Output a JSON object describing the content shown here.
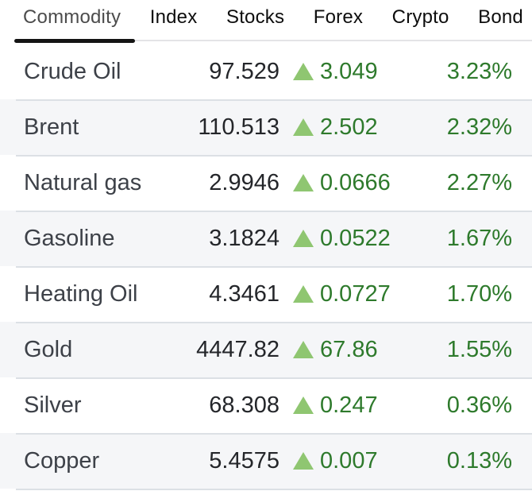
{
  "tabs": {
    "items": [
      {
        "label": "Commodity",
        "active": true
      },
      {
        "label": "Index",
        "active": false
      },
      {
        "label": "Stocks",
        "active": false
      },
      {
        "label": "Forex",
        "active": false
      },
      {
        "label": "Crypto",
        "active": false
      },
      {
        "label": "Bond",
        "active": false
      }
    ]
  },
  "table": {
    "rows": [
      {
        "name": "Crude Oil",
        "price": "97.529",
        "change": "3.049",
        "percent": "3.23%",
        "trend": "up"
      },
      {
        "name": "Brent",
        "price": "110.513",
        "change": "2.502",
        "percent": "2.32%",
        "trend": "up"
      },
      {
        "name": "Natural gas",
        "price": "2.9946",
        "change": "0.0666",
        "percent": "2.27%",
        "trend": "up"
      },
      {
        "name": "Gasoline",
        "price": "3.1824",
        "change": "0.0522",
        "percent": "1.67%",
        "trend": "up"
      },
      {
        "name": "Heating Oil",
        "price": "4.3461",
        "change": "0.0727",
        "percent": "1.70%",
        "trend": "up"
      },
      {
        "name": "Gold",
        "price": "4447.82",
        "change": "67.86",
        "percent": "1.55%",
        "trend": "up"
      },
      {
        "name": "Silver",
        "price": "68.308",
        "change": "0.247",
        "percent": "0.36%",
        "trend": "up"
      },
      {
        "name": "Copper",
        "price": "5.4575",
        "change": "0.007",
        "percent": "0.13%",
        "trend": "up"
      }
    ]
  },
  "icons": {
    "up_trend": "up-triangle-icon"
  },
  "colors": {
    "green_dark": "#2e7a2c",
    "green_light": "#8fc671",
    "row_alt": "#f5f6f8",
    "separator": "#dce0e5",
    "tab_underline": "#141414"
  }
}
